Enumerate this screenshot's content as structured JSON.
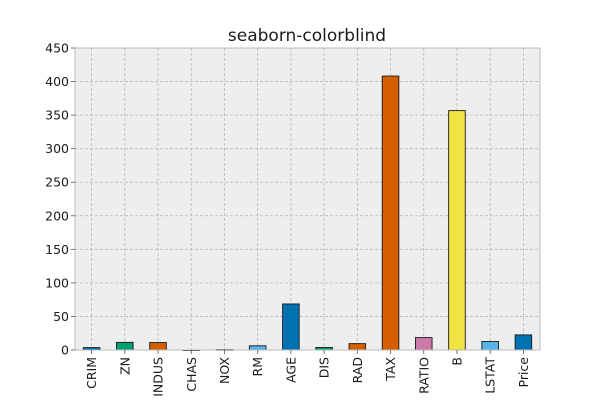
{
  "chart_data": {
    "type": "bar",
    "title": "seaborn-colorblind",
    "xlabel": "",
    "ylabel": "",
    "categories": [
      "CRIM",
      "ZN",
      "INDUS",
      "CHAS",
      "NOX",
      "RM",
      "AGE",
      "DIS",
      "RAD",
      "TAX",
      "RATIO",
      "B",
      "LSTAT",
      "Price"
    ],
    "values": [
      3.6,
      11.4,
      11.1,
      0.07,
      0.55,
      6.3,
      68.6,
      3.8,
      9.5,
      408.2,
      18.5,
      356.7,
      12.7,
      22.5
    ],
    "colors": [
      "#0072B2",
      "#009E73",
      "#D55E00",
      "#CC79A7",
      "#F0E442",
      "#56B4E9",
      "#0072B2",
      "#009E73",
      "#D55E00",
      "#D55E00",
      "#CC79A7",
      "#F0E442",
      "#56B4E9",
      "#0072B2"
    ],
    "ylim": [
      0,
      450
    ],
    "yticks": [
      0,
      50,
      100,
      150,
      200,
      250,
      300,
      350,
      400,
      450
    ],
    "grid": true,
    "background": "#EEEEEE",
    "axis_color": "#BCBCBC"
  }
}
